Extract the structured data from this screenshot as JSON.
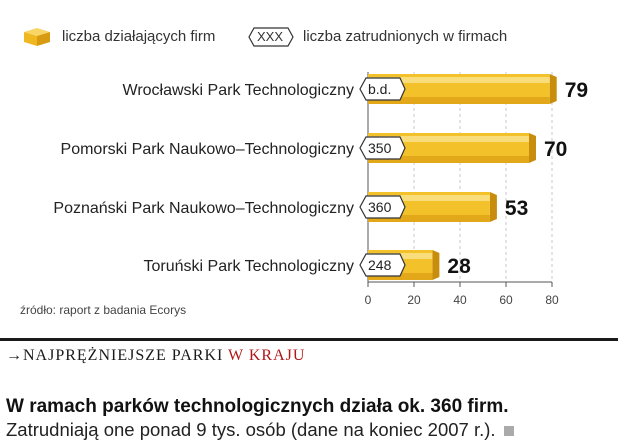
{
  "legend": {
    "firms_label": "liczba działających firm",
    "employees_symbol": "XXX",
    "employees_label": "liczba zatrudnionych w firmach"
  },
  "chart_data": {
    "type": "bar",
    "orientation": "horizontal",
    "categories": [
      "Wrocławski Park Technologiczny",
      "Pomorski Park Naukowo–Technologiczny",
      "Poznański Park Naukowo–Technologiczny",
      "Toruński Park Technologiczny"
    ],
    "series": [
      {
        "name": "liczba działających firm",
        "values": [
          79,
          70,
          53,
          28
        ]
      },
      {
        "name": "liczba zatrudnionych w firmach",
        "values": [
          "b.d.",
          "350",
          "360",
          "248"
        ]
      }
    ],
    "xlim": [
      0,
      80
    ],
    "xticks": [
      0,
      20,
      40,
      60,
      80
    ],
    "grid": true,
    "bar_color": "#f3c12a"
  },
  "source": "źródło: raport z badania Ecorys",
  "caption": {
    "prefix": "→NAJPRĘŻNIEJSZE PARKI ",
    "accent": "W KRAJU"
  },
  "headline": "W ramach parków technologicznych działa ok. 360 firm.",
  "body": "Zatrudniają one ponad 9 tys. osób (dane na koniec 2007 r.)."
}
